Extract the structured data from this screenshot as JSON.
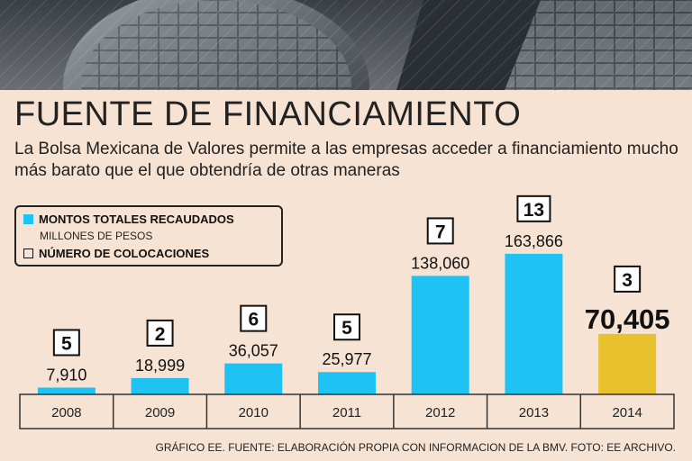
{
  "title": "FUENTE DE FINANCIAMIENTO",
  "subtitle": "La Bolsa Mexicana de Valores permite a las empresas acceder a financiamiento mucho más barato que el que obtendría de otras maneras",
  "legend": {
    "series1_label": "MONTOS TOTALES RECAUDADOS",
    "series1_unit": "MILLONES DE PESOS",
    "series2_label": "NÚMERO DE COLOCACIONES"
  },
  "footer": "GRÁFICO EE. FUENTE: ELABORACIÓN PROPIA CON INFORMACION DE LA BMV. FOTO: EE ARCHIVO.",
  "colors": {
    "bar": "#1fc3f3",
    "highlight": "#e8c12e",
    "background": "#f7e3d3"
  },
  "chart_data": {
    "type": "bar",
    "categories": [
      "2008",
      "2009",
      "2010",
      "2011",
      "2012",
      "2013",
      "2014"
    ],
    "values": [
      7910,
      18999,
      36057,
      25977,
      138060,
      163866,
      70405
    ],
    "value_labels": [
      "7,910",
      "18,999",
      "36,057",
      "25,977",
      "138,060",
      "163,866",
      "70,405"
    ],
    "counts": [
      5,
      2,
      6,
      5,
      7,
      13,
      3
    ],
    "ylim": [
      0,
      170000
    ],
    "highlight_category": "2014",
    "grid": false
  }
}
